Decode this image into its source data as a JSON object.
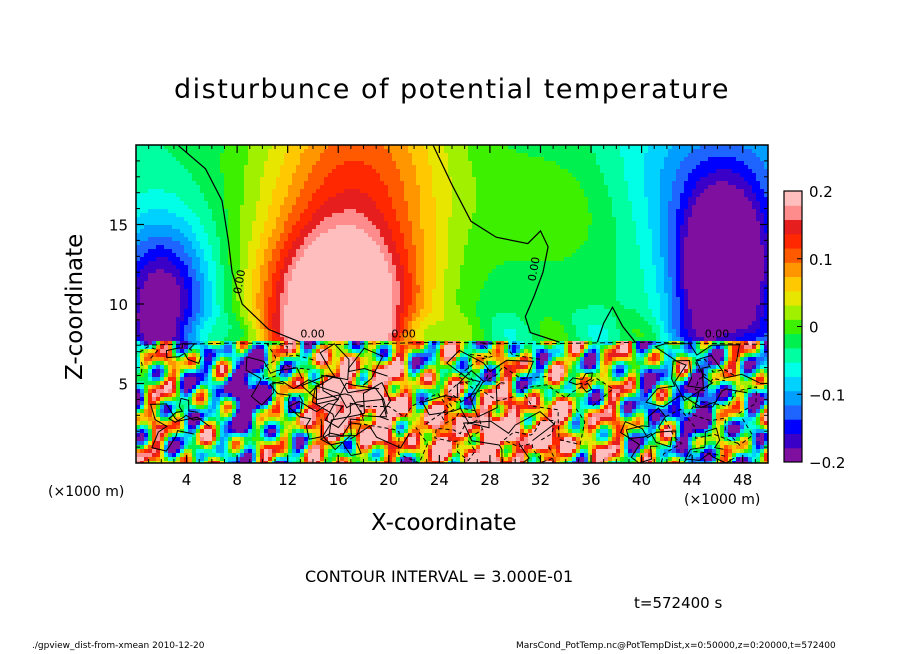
{
  "chart_data": {
    "type": "heatmap",
    "title": "disturbunce of potential temperature",
    "xlabel": "X-coordinate",
    "ylabel": "Z-coordinate",
    "x_unit_left": "(×1000 m)",
    "x_unit_right": "(×1000 m)",
    "x_ticks": [
      "4",
      "8",
      "12",
      "16",
      "20",
      "24",
      "28",
      "32",
      "36",
      "40",
      "44",
      "48"
    ],
    "x_tick_values": [
      4,
      8,
      12,
      16,
      20,
      24,
      28,
      32,
      36,
      40,
      44,
      48
    ],
    "xlim": [
      0,
      50
    ],
    "y_ticks": [
      "5",
      "10",
      "15"
    ],
    "y_tick_values": [
      5,
      10,
      15
    ],
    "ylim": [
      0,
      20
    ],
    "colorbar": {
      "ticks": [
        "0.2",
        "0.1",
        "0",
        "−0.1",
        "−0.2"
      ],
      "tick_values": [
        0.2,
        0.1,
        0,
        -0.1,
        -0.2
      ],
      "range": [
        -0.2,
        0.2
      ],
      "colors": [
        "#7f0f9f",
        "#3a00c8",
        "#0000ff",
        "#1e64ff",
        "#009fff",
        "#00d2ff",
        "#00ffe6",
        "#00ffa0",
        "#00f050",
        "#3cf000",
        "#a0f000",
        "#e6e600",
        "#ffc800",
        "#ff9600",
        "#ff5a00",
        "#ff2800",
        "#e61e1e",
        "#ff8c8c",
        "#ffbebe"
      ]
    },
    "contour_labels": [
      "0.00",
      "0.00",
      "0.00",
      "0.00",
      "0.00"
    ],
    "contour_interval_text": "CONTOUR INTERVAL = 3.000E-01",
    "time_text": "t=572400 s"
  },
  "footer": {
    "left": "./gpview_dist-from-xmean  2010-12-20",
    "right": "MarsCond_PotTemp.nc@PotTempDist,x=0:50000,z=0:20000,t=572400"
  }
}
